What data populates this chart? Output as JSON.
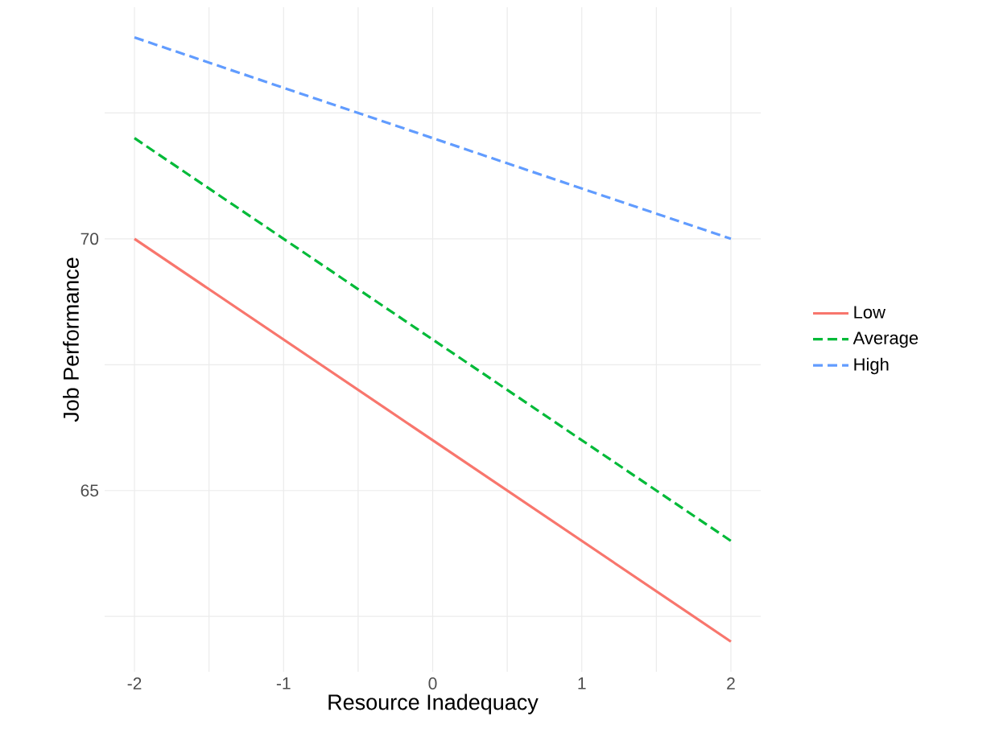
{
  "chart_data": {
    "type": "line",
    "xlabel": "Resource Inadequacy",
    "ylabel": "Job Performance",
    "x": [
      -2,
      2
    ],
    "series": [
      {
        "name": "Low",
        "color": "#f8766d",
        "values": [
          70,
          62
        ],
        "line_style": "solid"
      },
      {
        "name": "Average",
        "color": "#00ba38",
        "values": [
          72,
          64
        ],
        "line_style": "dashed"
      },
      {
        "name": "High",
        "color": "#619cff",
        "values": [
          74,
          70
        ],
        "line_style": "dashed"
      }
    ],
    "xlim": [
      -2.2,
      2.2
    ],
    "ylim": [
      61.4,
      74.6
    ],
    "xticks": [
      -2,
      {
        "value": -1.5,
        "label": null
      },
      -1,
      {
        "value": -0.5,
        "label": null
      },
      0,
      {
        "value": 0.5,
        "label": null
      },
      1,
      {
        "value": 1.5,
        "label": null
      },
      2
    ],
    "yticks": [
      {
        "value": 62.5,
        "label": null
      },
      65,
      {
        "value": 67.5,
        "label": null
      },
      70,
      {
        "value": 72.5,
        "label": null
      }
    ],
    "grid": true,
    "legend": "right",
    "marker": "none"
  }
}
